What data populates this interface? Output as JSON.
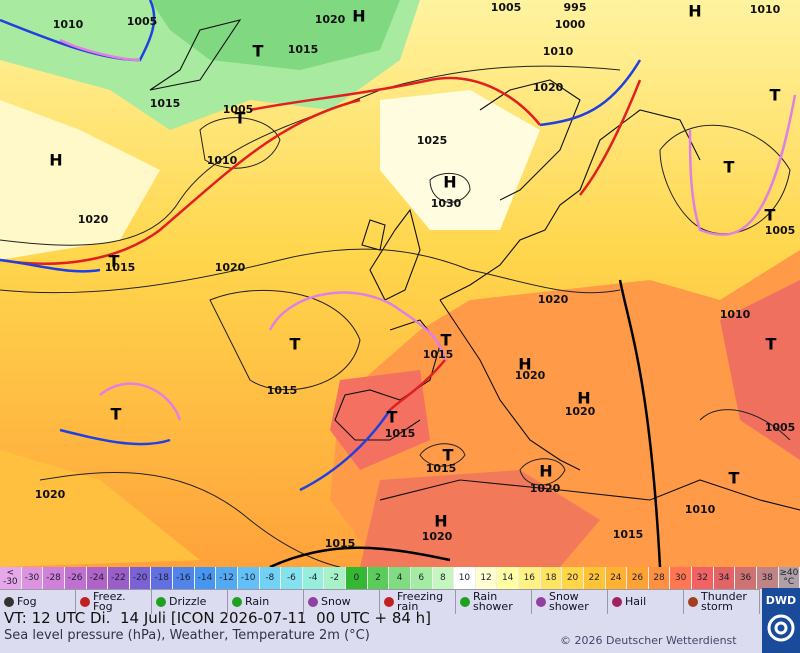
{
  "map": {
    "pressure_labels": [
      "1010",
      "1005",
      "1020",
      "1005",
      "995",
      "1000",
      "1010",
      "1015",
      "1015",
      "1005",
      "1010",
      "1025",
      "1030",
      "1020",
      "1015",
      "1020",
      "1020",
      "1015",
      "1015",
      "1020",
      "1020",
      "1015",
      "1015",
      "1020",
      "1020",
      "1010",
      "1015",
      "1005",
      "1010",
      "1005",
      "1020",
      "1010",
      "1020",
      "1015"
    ],
    "pressure_centers": [
      "H",
      "T",
      "T",
      "H",
      "T",
      "T",
      "T",
      "T",
      "T",
      "H",
      "H",
      "T",
      "H",
      "H",
      "T",
      "T",
      "T",
      "T",
      "H",
      "H",
      "T"
    ]
  },
  "legend": {
    "scale": {
      "labels": [
        "< -30",
        -30,
        -28,
        -26,
        -24,
        -22,
        -20,
        -18,
        -16,
        -14,
        -12,
        -10,
        -8,
        -6,
        -4,
        -2,
        0,
        2,
        4,
        6,
        8,
        10,
        12,
        14,
        16,
        18,
        20,
        22,
        24,
        26,
        28,
        30,
        32,
        34,
        36,
        38,
        "≥40 °C"
      ],
      "colors": [
        "#e6a8ea",
        "#dc94e0",
        "#cf80d8",
        "#c070d0",
        "#b062c8",
        "#9a5ec8",
        "#7a62d4",
        "#6070e0",
        "#5084e8",
        "#4496f0",
        "#52aaf2",
        "#62c0f6",
        "#72d2f6",
        "#84e2ee",
        "#96eedd",
        "#a8f2c8",
        "#34b834",
        "#5acc5a",
        "#80dc80",
        "#a4eca4",
        "#c6f6c0",
        "#ffffff",
        "#ffffd2",
        "#ffffa4",
        "#fff284",
        "#ffe462",
        "#ffd648",
        "#ffc436",
        "#ffb232",
        "#ffa234",
        "#ff9040",
        "#ff7650",
        "#f26262",
        "#e26464",
        "#d07272",
        "#c08484",
        "#b0a0a6"
      ]
    },
    "weather": [
      "Fog",
      "Freez.\nFog",
      "Drizzle",
      "Rain",
      "Snow",
      "Freezing\nrain",
      "Rain\nshower",
      "Snow\nshower",
      "Hail",
      "Thunder\nstorm"
    ]
  },
  "footer": {
    "valid_time": "VT: 12 UTC Di.  14 Juli [ICON 2026-07-11  00 UTC + 84 h]",
    "subtitle": "Sea level pressure (hPa), Weather, Temperature 2m (°C)",
    "copyright": "© 2026 Deutscher Wetterdienst",
    "logo": "DWD"
  }
}
